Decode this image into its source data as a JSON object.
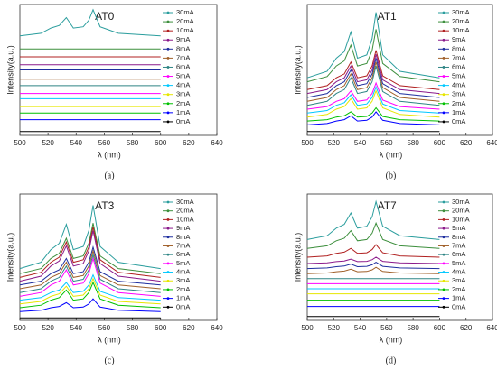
{
  "chart_data": [
    {
      "type": "line",
      "title": "AT0",
      "caption": "(a)",
      "x_label": "λ (nm)",
      "y_label": "Intensity(a.u.)",
      "x": [
        500,
        515,
        522,
        528,
        533,
        538,
        545,
        549,
        552,
        557,
        570,
        600
      ],
      "xlim": [
        500,
        640
      ],
      "xticks": [
        500,
        520,
        540,
        560,
        580,
        600,
        620,
        640
      ],
      "ylim": [
        0,
        100
      ],
      "legend": "right",
      "series": [
        {
          "name": "30mA",
          "color": "#2a9d9d",
          "values": [
            76,
            78,
            82,
            84,
            90,
            82,
            83,
            88,
            96,
            83,
            78,
            76
          ]
        },
        {
          "name": "20mA",
          "color": "#3d8f3d",
          "values": [
            66,
            66,
            66,
            66,
            66,
            66,
            66,
            66,
            66,
            66,
            66,
            66
          ]
        },
        {
          "name": "10mA",
          "color": "#b02020",
          "values": [
            60,
            60,
            60,
            60,
            60,
            60,
            60,
            60,
            60,
            60,
            60,
            60
          ]
        },
        {
          "name": "9mA",
          "color": "#8b1a8b",
          "values": [
            54,
            54,
            54,
            54,
            54,
            54,
            54,
            54,
            54,
            54,
            54,
            54
          ]
        },
        {
          "name": "8mA",
          "color": "#1f2f9f",
          "values": [
            50,
            50,
            50,
            50,
            50,
            50,
            50,
            50,
            50,
            50,
            50,
            50
          ]
        },
        {
          "name": "7mA",
          "color": "#a0602a",
          "values": [
            43,
            43,
            43,
            43,
            43,
            43,
            43,
            43,
            43,
            43,
            43,
            43
          ]
        },
        {
          "name": "6mA",
          "color": "#2f8585",
          "values": [
            38,
            38,
            38,
            38,
            38,
            38,
            38,
            38,
            38,
            38,
            38,
            38
          ]
        },
        {
          "name": "5mA",
          "color": "#ff00ff",
          "values": [
            32,
            32,
            32,
            32,
            32,
            32,
            32,
            32,
            32,
            32,
            32,
            32
          ]
        },
        {
          "name": "4mA",
          "color": "#00c8ff",
          "values": [
            28,
            28,
            28,
            28,
            28,
            28,
            28,
            28,
            28,
            28,
            28,
            28
          ]
        },
        {
          "name": "3mA",
          "color": "#e6e600",
          "values": [
            22,
            22,
            22,
            22,
            22,
            22,
            22,
            22,
            22,
            22,
            22,
            22
          ]
        },
        {
          "name": "2mA",
          "color": "#00c000",
          "values": [
            17,
            17,
            17,
            17,
            17,
            17,
            17,
            17,
            17,
            17,
            17,
            17
          ]
        },
        {
          "name": "1mA",
          "color": "#0000ff",
          "values": [
            12,
            12,
            12,
            12,
            12,
            12,
            12,
            12,
            12,
            12,
            12,
            12
          ]
        },
        {
          "name": "0mA",
          "color": "#000000",
          "values": [
            3,
            3,
            3,
            3,
            3,
            3,
            3,
            3,
            3,
            3,
            3,
            3
          ]
        }
      ]
    },
    {
      "type": "line",
      "title": "AT1",
      "caption": "(b)",
      "x_label": "λ (nm)",
      "y_label": "Intensity(a.u.)",
      "x": [
        500,
        515,
        522,
        528,
        533,
        538,
        545,
        549,
        552,
        557,
        570,
        600
      ],
      "xlim": [
        500,
        640
      ],
      "xticks": [
        500,
        520,
        540,
        560,
        580,
        600,
        620,
        640
      ],
      "ylim": [
        0,
        100
      ],
      "legend": "right",
      "series": [
        {
          "name": "30mA",
          "color": "#2a9d9d",
          "values": [
            44,
            49,
            59,
            64,
            79,
            59,
            61.5,
            74,
            94,
            61.5,
            49,
            44
          ]
        },
        {
          "name": "20mA",
          "color": "#3d8f3d",
          "values": [
            41,
            45,
            53,
            57,
            69,
            53,
            55,
            65,
            81,
            55,
            45,
            41
          ]
        },
        {
          "name": "10mA",
          "color": "#b02020",
          "values": [
            35,
            38,
            44,
            47,
            56,
            44,
            45.5,
            53,
            65,
            45.5,
            38,
            35
          ]
        },
        {
          "name": "9mA",
          "color": "#8b1a8b",
          "values": [
            32,
            35,
            41,
            44,
            53,
            41,
            42.5,
            50,
            62,
            42.5,
            35,
            32
          ]
        },
        {
          "name": "8mA",
          "color": "#1f2f9f",
          "values": [
            29,
            32,
            38,
            41,
            50,
            38,
            39.5,
            47,
            59,
            39.5,
            32,
            29
          ]
        },
        {
          "name": "7mA",
          "color": "#a0602a",
          "values": [
            26,
            29,
            35,
            38,
            47,
            35,
            36.5,
            44,
            56,
            36.5,
            29,
            26
          ]
        },
        {
          "name": "6mA",
          "color": "#2f8585",
          "values": [
            23,
            26,
            32,
            35,
            44,
            32,
            33.5,
            41,
            53,
            33.5,
            26,
            23
          ]
        },
        {
          "name": "5mA",
          "color": "#ff00ff",
          "values": [
            20,
            22,
            26,
            28,
            34,
            26,
            27,
            32,
            40,
            27,
            22,
            20
          ]
        },
        {
          "name": "4mA",
          "color": "#00c8ff",
          "values": [
            17,
            19,
            23,
            25,
            31,
            23,
            24,
            29,
            37,
            24,
            19,
            17
          ]
        },
        {
          "name": "3mA",
          "color": "#e6e600",
          "values": [
            14,
            16,
            20,
            22,
            28,
            20,
            21,
            26,
            34,
            21,
            16,
            14
          ]
        },
        {
          "name": "2mA",
          "color": "#00c000",
          "values": [
            11,
            12,
            14,
            15,
            18,
            14,
            14.5,
            17,
            21,
            14.5,
            12,
            11
          ]
        },
        {
          "name": "1mA",
          "color": "#0000ff",
          "values": [
            8,
            9,
            11,
            12,
            15,
            11,
            11.5,
            14,
            18,
            11.5,
            9,
            8
          ]
        },
        {
          "name": "0mA",
          "color": "#000000",
          "values": [
            3,
            3,
            3,
            3,
            3,
            3,
            3,
            3,
            3,
            3,
            3,
            3
          ]
        }
      ]
    },
    {
      "type": "line",
      "title": "AT3",
      "caption": "(c)",
      "x_label": "λ (nm)",
      "y_label": "Intensity(a.u.)",
      "x": [
        500,
        515,
        522,
        528,
        533,
        538,
        545,
        549,
        552,
        557,
        570,
        600
      ],
      "xlim": [
        500,
        640
      ],
      "xticks": [
        500,
        520,
        540,
        560,
        580,
        600,
        620,
        640
      ],
      "ylim": [
        0,
        100
      ],
      "legend": "right",
      "series": [
        {
          "name": "30mA",
          "color": "#2a9d9d",
          "values": [
            41,
            46,
            56,
            61,
            76,
            56,
            58.5,
            71,
            91,
            58.5,
            46,
            41
          ]
        },
        {
          "name": "20mA",
          "color": "#3d8f3d",
          "values": [
            37,
            41,
            49,
            53,
            65,
            49,
            51,
            61,
            77,
            51,
            41,
            37
          ]
        },
        {
          "name": "10mA",
          "color": "#b02020",
          "values": [
            34,
            38,
            46,
            50,
            62,
            46,
            48,
            58,
            74,
            48,
            38,
            34
          ]
        },
        {
          "name": "9mA",
          "color": "#8b1a8b",
          "values": [
            31,
            35,
            43,
            47,
            59,
            43,
            45,
            55,
            71,
            45,
            35,
            31
          ]
        },
        {
          "name": "8mA",
          "color": "#1f2f9f",
          "values": [
            28,
            31,
            37,
            40,
            49,
            37,
            38.5,
            46,
            58,
            38.5,
            31,
            28
          ]
        },
        {
          "name": "7mA",
          "color": "#a0602a",
          "values": [
            25,
            28,
            34,
            37,
            46,
            34,
            35.5,
            43,
            55,
            35.5,
            28,
            25
          ]
        },
        {
          "name": "6mA",
          "color": "#2f8585",
          "values": [
            22,
            25,
            31,
            34,
            43,
            31,
            32.5,
            40,
            52,
            32.5,
            25,
            22
          ]
        },
        {
          "name": "5mA",
          "color": "#ff00ff",
          "values": [
            19,
            22,
            28,
            31,
            40,
            28,
            29.5,
            37,
            49,
            29.5,
            22,
            19
          ]
        },
        {
          "name": "4mA",
          "color": "#00c8ff",
          "values": [
            16,
            18,
            22,
            24,
            30,
            22,
            23,
            28,
            36,
            23,
            18,
            16
          ]
        },
        {
          "name": "3mA",
          "color": "#e6e600",
          "values": [
            13,
            15,
            19,
            21,
            27,
            19,
            20,
            25,
            33,
            20,
            15,
            13
          ]
        },
        {
          "name": "2mA",
          "color": "#00c000",
          "values": [
            10,
            12,
            16,
            18,
            24,
            16,
            17,
            22,
            30,
            17,
            12,
            10
          ]
        },
        {
          "name": "1mA",
          "color": "#0000ff",
          "values": [
            7,
            8,
            10,
            11,
            14,
            10,
            10.5,
            13,
            17,
            10.5,
            8,
            7
          ]
        },
        {
          "name": "0mA",
          "color": "#000000",
          "values": [
            2,
            2,
            2,
            2,
            2,
            2,
            2,
            2,
            2,
            2,
            2,
            2
          ]
        }
      ]
    },
    {
      "type": "line",
      "title": "AT7",
      "caption": "(d)",
      "x_label": "λ (nm)",
      "y_label": "Intensity(a.u.)",
      "x": [
        500,
        515,
        522,
        528,
        533,
        538,
        545,
        549,
        552,
        557,
        570,
        600
      ],
      "xlim": [
        500,
        640
      ],
      "xticks": [
        500,
        520,
        540,
        560,
        580,
        600,
        620,
        640
      ],
      "ylim": [
        0,
        100
      ],
      "legend": "right",
      "series": [
        {
          "name": "30mA",
          "color": "#2a9d9d",
          "values": [
            64,
            67,
            73,
            76,
            85,
            73,
            74.5,
            82,
            94,
            74.5,
            67,
            64
          ]
        },
        {
          "name": "20mA",
          "color": "#3d8f3d",
          "values": [
            57,
            59,
            63,
            65,
            71,
            63,
            64,
            69,
            77,
            64,
            59,
            57
          ]
        },
        {
          "name": "10mA",
          "color": "#b02020",
          "values": [
            50,
            51,
            53,
            54,
            57,
            53,
            53.5,
            56,
            60,
            53.5,
            51,
            50
          ]
        },
        {
          "name": "9mA",
          "color": "#8b1a8b",
          "values": [
            45,
            45.5,
            46.5,
            47,
            48.5,
            46.5,
            46.75,
            48,
            50,
            46.75,
            45.5,
            45
          ]
        },
        {
          "name": "8mA",
          "color": "#1f2f9f",
          "values": [
            41,
            41.5,
            42.5,
            43,
            44.5,
            42.5,
            42.75,
            44,
            46,
            42.75,
            41.5,
            41
          ]
        },
        {
          "name": "7mA",
          "color": "#a0602a",
          "values": [
            37,
            37.5,
            38.5,
            39,
            40.5,
            38.5,
            38.75,
            40,
            42,
            38.75,
            37.5,
            37
          ]
        },
        {
          "name": "6mA",
          "color": "#2f8585",
          "values": [
            33,
            33,
            33,
            33,
            33,
            33,
            33,
            33,
            33,
            33,
            33,
            33
          ]
        },
        {
          "name": "5mA",
          "color": "#ff00ff",
          "values": [
            29,
            29,
            29,
            29,
            29,
            29,
            29,
            29,
            29,
            29,
            29,
            29
          ]
        },
        {
          "name": "4mA",
          "color": "#00c8ff",
          "values": [
            25,
            25,
            25,
            25,
            25,
            25,
            25,
            25,
            25,
            25,
            25,
            25
          ]
        },
        {
          "name": "3mA",
          "color": "#e6e600",
          "values": [
            21,
            21,
            21,
            21,
            21,
            21,
            21,
            21,
            21,
            21,
            21,
            21
          ]
        },
        {
          "name": "2mA",
          "color": "#00c000",
          "values": [
            16,
            16,
            16,
            16,
            16,
            16,
            16,
            16,
            16,
            16,
            16,
            16
          ]
        },
        {
          "name": "1mA",
          "color": "#0000ff",
          "values": [
            11,
            11,
            11,
            11,
            11,
            11,
            11,
            11,
            11,
            11,
            11,
            11
          ]
        },
        {
          "name": "0mA",
          "color": "#000000",
          "values": [
            3,
            3,
            3,
            3,
            3,
            3,
            3,
            3,
            3,
            3,
            3,
            3
          ]
        }
      ]
    }
  ]
}
